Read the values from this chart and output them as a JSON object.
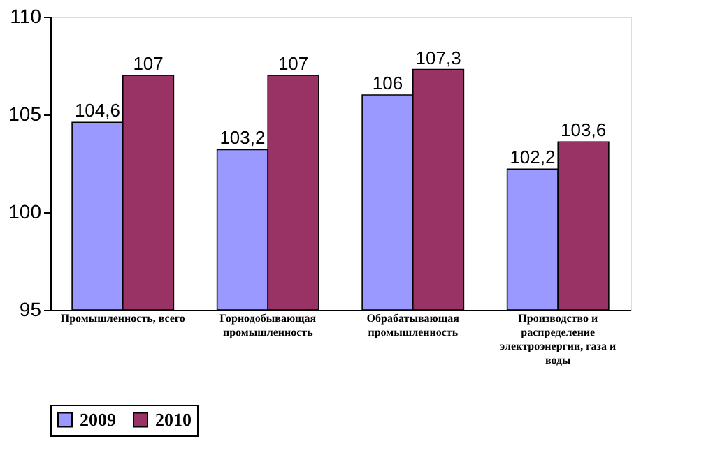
{
  "chart_data": {
    "type": "bar",
    "categories": [
      "Промышленность, всего",
      "Горнодобывающая промышленность",
      "Обрабатывающая промышленность",
      "Производство и распределение электроэнергии, газа и воды"
    ],
    "series": [
      {
        "name": "2009",
        "color": "#9999ff",
        "values": [
          104.6,
          103.2,
          106,
          102.2
        ],
        "value_labels": [
          "104,6",
          "103,2",
          "106",
          "102,2"
        ]
      },
      {
        "name": "2010",
        "color": "#993366",
        "values": [
          107,
          107,
          107.3,
          103.6
        ],
        "value_labels": [
          "107",
          "107",
          "107,3",
          "103,6"
        ]
      }
    ],
    "ylim": [
      95,
      110
    ],
    "yticks": [
      95,
      100,
      105,
      110
    ],
    "grid": false,
    "legend": "bottom"
  }
}
